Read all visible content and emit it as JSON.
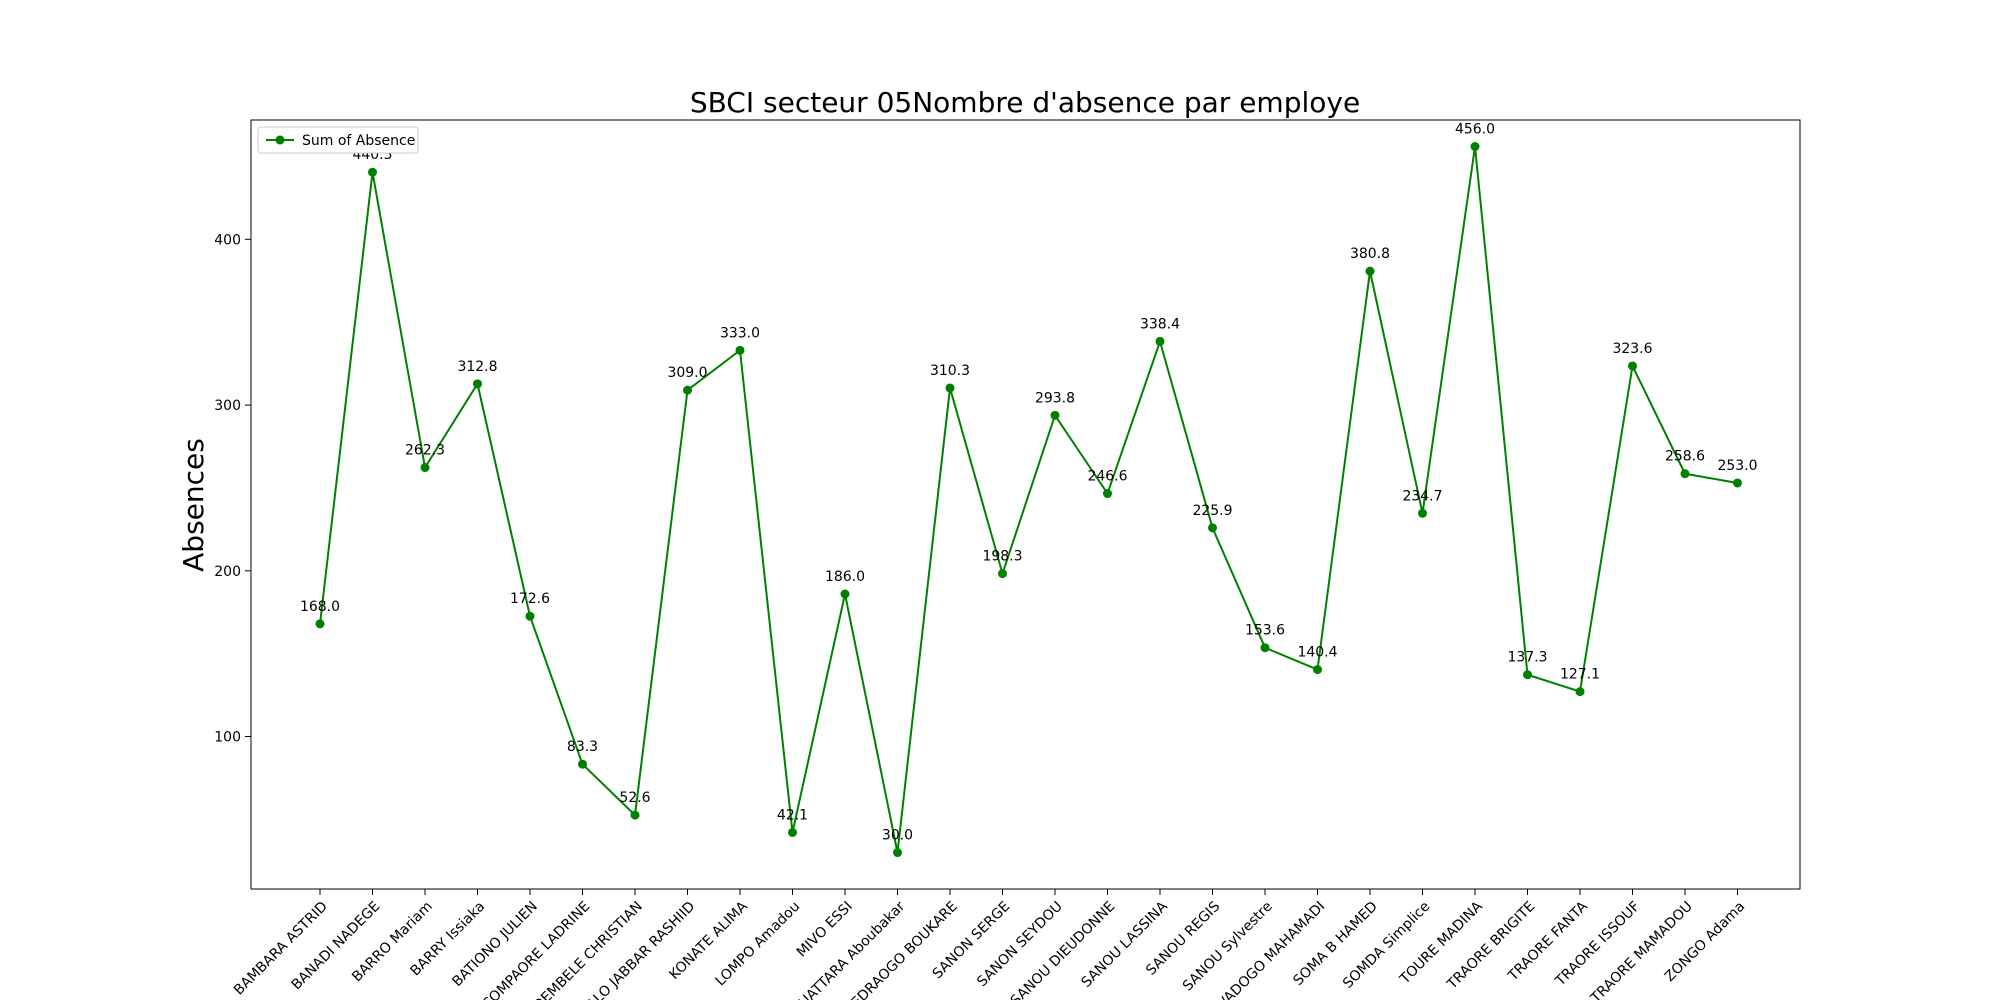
{
  "chart_data": {
    "type": "line",
    "title": "SBCI secteur 05Nombre d'absence par employe",
    "xlabel": "",
    "ylabel": "Absences",
    "ylim": [
      8,
      472
    ],
    "yticks": [
      100,
      200,
      300,
      400
    ],
    "grid": false,
    "legend_position": "top-left",
    "series_color": "#008000",
    "categories": [
      "BAMBARA ASTRID",
      "BANADI NADEGE",
      "BARRO Mariam",
      "BARRY Issiaka",
      "BATIONO JULIEN",
      "COMPAORE LADRINE",
      "DEMBELE CHRISTIAN",
      "DJALO JABBAR RASHIID",
      "KONATE ALIMA",
      "LOMPO Amadou",
      "MIVO ESSI",
      "OUATTARA Aboubakar",
      "OUEDRAOGO BOUKARE",
      "SANON SERGE",
      "SANON SEYDOU",
      "SANOU DIEUDONNE",
      "SANOU LASSINA",
      "SANOU REGIS",
      "SANOU Sylvestre",
      "SAWADOGO MAHAMADI",
      "SOMA B HAMED",
      "SOMDA Simplice",
      "TOURE MADINA",
      "TRAORE BRIGITE",
      "TRAORE FANTA",
      "TRAORE ISSOUF",
      "TRAORE MAMADOU",
      "ZONGO Adama"
    ],
    "series": [
      {
        "name": "Sum of Absence",
        "values": [
          168.0,
          440.5,
          262.3,
          312.8,
          172.6,
          83.3,
          52.6,
          309.0,
          333.0,
          42.1,
          186.0,
          30.0,
          310.3,
          198.3,
          293.8,
          246.6,
          338.4,
          225.9,
          153.6,
          140.4,
          380.8,
          234.7,
          456.0,
          137.3,
          127.1,
          323.6,
          258.6,
          253.0
        ],
        "labels": [
          "168.0",
          "440.5",
          "262.3",
          "312.8",
          "172.6",
          "83.3",
          "52.6",
          "309.0",
          "333.0",
          "42.1",
          "186.0",
          "30.0",
          "310.3",
          "198.3",
          "293.8",
          "246.6",
          "338.4",
          "225.9",
          "153.6",
          "140.4",
          "380.8",
          "234.7",
          "456.0",
          "137.3",
          "127.1",
          "323.6",
          "258.6",
          "253.0"
        ]
      }
    ]
  }
}
